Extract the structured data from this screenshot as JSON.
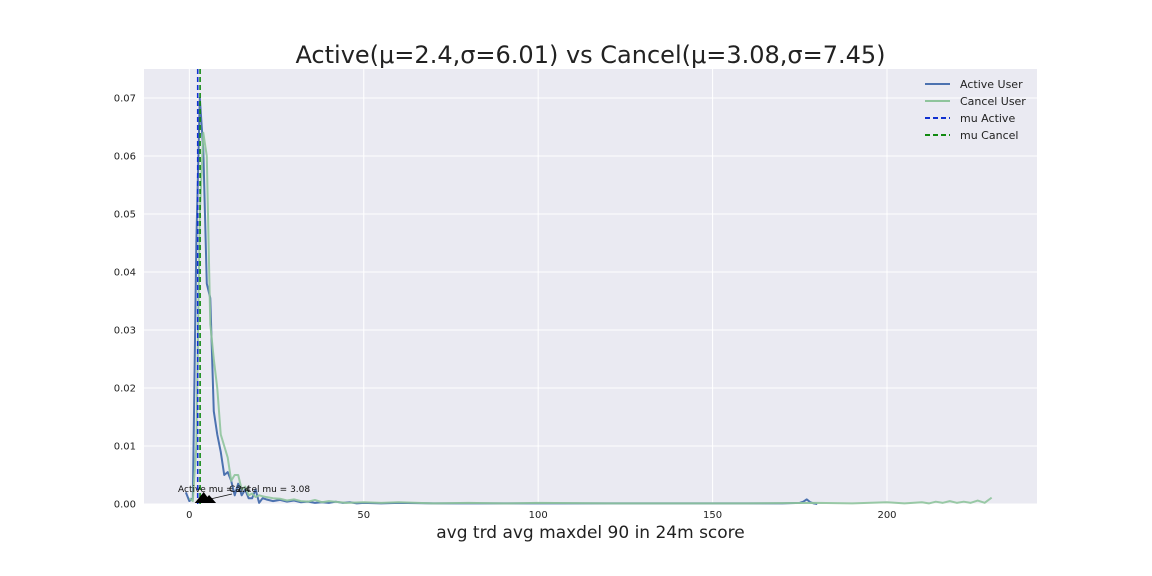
{
  "chart_data": {
    "type": "line",
    "title": "Active(μ=2.4,σ=6.01) vs Cancel(μ=3.08,σ=7.45)",
    "xlabel": "avg trd avg maxdel 90 in 24m score",
    "ylabel": "",
    "xlim": [
      -13,
      243
    ],
    "ylim": [
      0,
      0.075
    ],
    "xticks": [
      0,
      50,
      100,
      150,
      200
    ],
    "yticks": [
      0.0,
      0.01,
      0.02,
      0.03,
      0.04,
      0.05,
      0.06,
      0.07
    ],
    "xtick_labels": [
      "0",
      "50",
      "100",
      "150",
      "200"
    ],
    "ytick_labels": [
      "0.00",
      "0.01",
      "0.02",
      "0.03",
      "0.04",
      "0.05",
      "0.06",
      "0.07"
    ],
    "grid": true,
    "legend_position": "top-right",
    "series": [
      {
        "name": "Active User",
        "color": "#4c72b0",
        "style": "solid",
        "x": [
          -1,
          0,
          1,
          2,
          3,
          4,
          5,
          6,
          7,
          8,
          9,
          10,
          11,
          12,
          13,
          14,
          15,
          16,
          17,
          18,
          19,
          20,
          21,
          22,
          24,
          26,
          28,
          30,
          32,
          34,
          36,
          38,
          40,
          42,
          44,
          46,
          48,
          50,
          55,
          60,
          70,
          80,
          90,
          100,
          110,
          120,
          130,
          140,
          150,
          160,
          170,
          175,
          176,
          177,
          178,
          179,
          180
        ],
        "y": [
          0.002,
          0.0005,
          0.001,
          0.045,
          0.07,
          0.061,
          0.038,
          0.0355,
          0.016,
          0.012,
          0.009,
          0.005,
          0.0055,
          0.004,
          0.0015,
          0.0035,
          0.0015,
          0.0025,
          0.001,
          0.001,
          0.0025,
          0.0002,
          0.001,
          0.0008,
          0.0005,
          0.0007,
          0.0004,
          0.0006,
          0.0003,
          0.0004,
          0.0002,
          0.0003,
          0.0002,
          0.0004,
          0.0002,
          0.0003,
          0.0001,
          0.0002,
          0.0001,
          0.0002,
          0.0001,
          0.0001,
          0.0001,
          0.0001,
          0.0001,
          0.0001,
          0.0001,
          0.0001,
          0.0001,
          0.0001,
          0.0001,
          0.0002,
          0.0004,
          0.0008,
          0.0003,
          0.0001,
          0.0
        ]
      },
      {
        "name": "Cancel User",
        "color": "#8fc49c",
        "style": "solid",
        "x": [
          0,
          1,
          2,
          3,
          4,
          5,
          6,
          7,
          8,
          9,
          10,
          11,
          12,
          13,
          14,
          15,
          16,
          17,
          18,
          19,
          20,
          22,
          24,
          26,
          28,
          30,
          32,
          34,
          36,
          38,
          40,
          45,
          50,
          55,
          60,
          70,
          80,
          90,
          100,
          120,
          140,
          160,
          180,
          190,
          200,
          205,
          210,
          212,
          214,
          216,
          218,
          220,
          222,
          224,
          226,
          228,
          230
        ],
        "y": [
          0.001,
          0.0005,
          0.01,
          0.05,
          0.064,
          0.06,
          0.031,
          0.025,
          0.02,
          0.012,
          0.01,
          0.008,
          0.004,
          0.005,
          0.005,
          0.0025,
          0.003,
          0.0015,
          0.0018,
          0.0012,
          0.0015,
          0.0012,
          0.001,
          0.0009,
          0.0006,
          0.0008,
          0.0005,
          0.0004,
          0.0007,
          0.0003,
          0.0005,
          0.0002,
          0.0003,
          0.0002,
          0.0003,
          0.0001,
          0.0002,
          0.0001,
          0.0002,
          0.0001,
          0.0001,
          0.0001,
          0.0002,
          0.0001,
          0.0003,
          0.0001,
          0.0003,
          0.0001,
          0.0004,
          0.0002,
          0.0005,
          0.0002,
          0.0004,
          0.0002,
          0.0006,
          0.0002,
          0.0011
        ]
      }
    ],
    "vlines": [
      {
        "name": "mu Active",
        "x": 2.4,
        "color": "#1030d0",
        "style": "dashed"
      },
      {
        "name": "mu Cancel",
        "x": 3.08,
        "color": "#118a11",
        "style": "dashed"
      }
    ],
    "annotations": [
      {
        "text": "Active mu = 2.4",
        "x": 2.4,
        "y": 0.0
      },
      {
        "text": "Cancel mu = 3.08",
        "x": 3.08,
        "y": 0.0
      }
    ],
    "legend": [
      "Active User",
      "Cancel User",
      "mu Active",
      "mu Cancel"
    ],
    "background": "#eaeaf2",
    "grid_color": "#ffffff"
  }
}
